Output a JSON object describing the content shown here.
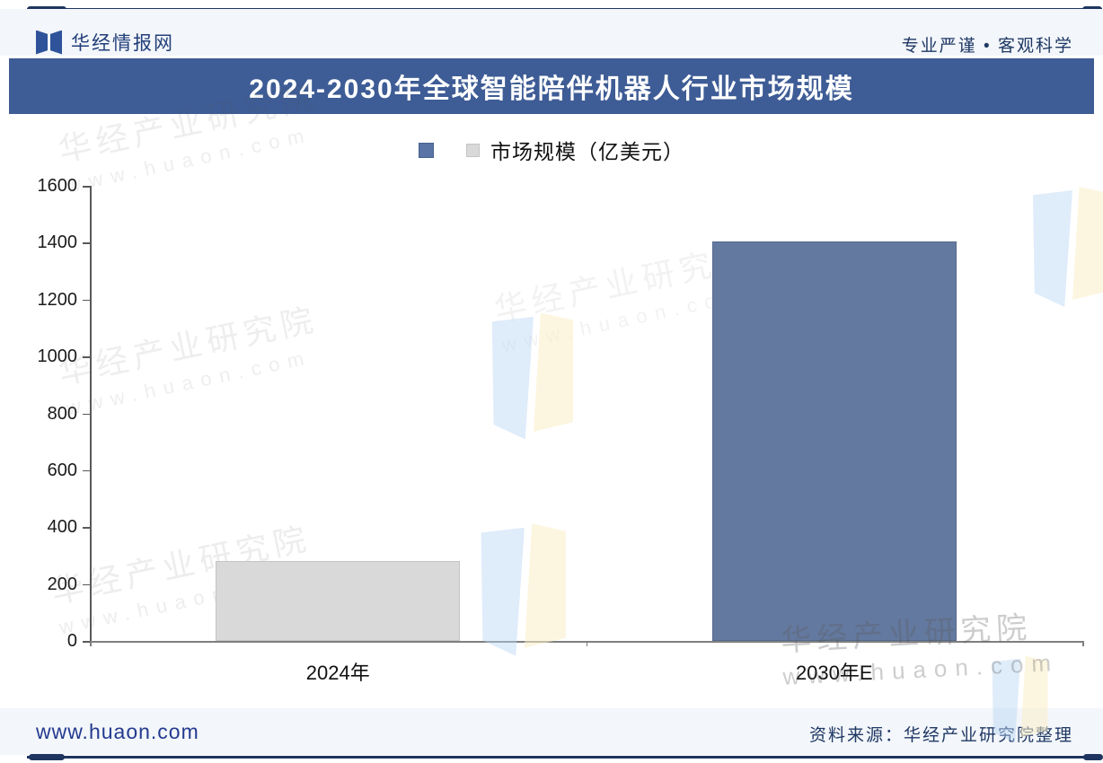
{
  "header": {
    "brand": "华经情报网",
    "tagline": "专业严谨 • 客观科学"
  },
  "title_banner": {
    "text": "2024-2030年全球智能陪伴机器人行业市场规模"
  },
  "legend": {
    "label": "市场规模（亿美元）",
    "swatches": [
      "#5a74a5",
      "#d9d9d9"
    ]
  },
  "chart_data": {
    "type": "bar",
    "title": "2024-2030年全球智能陪伴机器人行业市场规模",
    "categories": [
      "2024年",
      "2030年E"
    ],
    "series": [
      {
        "name": "市场规模（亿美元）",
        "values": [
          280,
          1405
        ]
      }
    ],
    "bar_colors": [
      "#d9d9d9",
      "#64799f"
    ],
    "bar_borders": [
      "#c4c4c4",
      "#54698c"
    ],
    "ylabel": "",
    "xlabel": "",
    "ylim": [
      0,
      1600
    ],
    "yticks": [
      0,
      200,
      400,
      600,
      800,
      1000,
      1200,
      1400,
      1600
    ],
    "grid": false,
    "legend_position": "top-center"
  },
  "watermark": {
    "line1": "华经产业研究院",
    "line2": "www.huaon.com"
  },
  "footer": {
    "website": "www.huaon.com",
    "source": "资料来源：华经产业研究院整理"
  },
  "colors": {
    "banner_bg": "#3e5c95",
    "navy_rule": "#1e3560",
    "strip_bg": "#f3f6fa",
    "bar_blue": "#64799f",
    "bar_gray": "#d9d9d9"
  }
}
